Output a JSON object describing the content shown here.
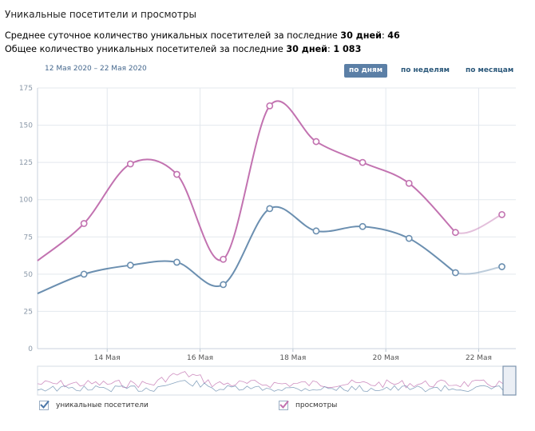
{
  "header": {
    "title": "Уникальные посетители и просмотры",
    "stat1_text": "Среднее суточное количество уникальных посетителей за последние ",
    "stat1_days": "30 дней",
    "stat1_sep": ": ",
    "stat1_value": "46",
    "stat2_text": "Общее количество уникальных посетителей за последние ",
    "stat2_days": "30 дней",
    "stat2_sep": ": ",
    "stat2_value": "1 083"
  },
  "range_label": "12 Мая 2020 – 22 Мая 2020",
  "period_buttons": [
    {
      "label": "по дням",
      "active": true
    },
    {
      "label": "по неделям",
      "active": false
    },
    {
      "label": "по месяцам",
      "active": false
    }
  ],
  "legend": [
    {
      "label": "уникальные посетители",
      "checked": true,
      "color": "#6b8fb0"
    },
    {
      "label": "просмотры",
      "checked": true,
      "color": "#c272b0"
    }
  ],
  "chart_data": {
    "type": "line",
    "title": "",
    "xlabel": "",
    "ylabel": "",
    "x_ticks": [
      "14 Мая",
      "16 Мая",
      "18 Мая",
      "20 Мая",
      "22 Мая"
    ],
    "y_ticks": [
      0,
      25,
      50,
      75,
      100,
      125,
      150,
      175
    ],
    "ylim": [
      0,
      175
    ],
    "xlim": [
      12.5,
      22.8
    ],
    "grid": true,
    "x": [
      13.5,
      14.5,
      15.5,
      16.5,
      17.5,
      18.5,
      19.5,
      20.5,
      21.5,
      22.5
    ],
    "series": [
      {
        "name": "уникальные посетители",
        "color": "#6b8fb0",
        "start_value": 37,
        "values": [
          50,
          56,
          58,
          43,
          94,
          79,
          82,
          74,
          51,
          55
        ]
      },
      {
        "name": "просмотры",
        "color": "#c272b0",
        "start_value": 59,
        "values": [
          84,
          124,
          117,
          60,
          163,
          139,
          125,
          111,
          78,
          90
        ]
      }
    ],
    "navigator": true
  }
}
